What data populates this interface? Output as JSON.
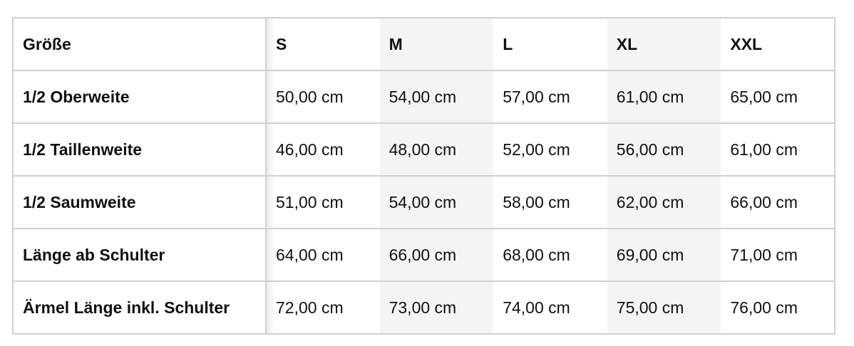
{
  "table": {
    "header": [
      "Größe",
      "S",
      "M",
      "L",
      "XL",
      "XXL"
    ],
    "rows": [
      [
        "1/2 Oberweite",
        "50,00 cm",
        "54,00 cm",
        "57,00 cm",
        "61,00 cm",
        "65,00 cm"
      ],
      [
        "1/2 Taillenweite",
        "46,00 cm",
        "48,00 cm",
        "52,00 cm",
        "56,00 cm",
        "61,00 cm"
      ],
      [
        "1/2 Saumweite",
        "51,00 cm",
        "54,00 cm",
        "58,00 cm",
        "62,00 cm",
        "66,00 cm"
      ],
      [
        "Länge ab Schulter",
        "64,00 cm",
        "66,00 cm",
        "68,00 cm",
        "69,00 cm",
        "71,00 cm"
      ],
      [
        "Ärmel Länge inkl. Schulter",
        "72,00 cm",
        "73,00 cm",
        "74,00 cm",
        "75,00 cm",
        "76,00 cm"
      ]
    ]
  }
}
